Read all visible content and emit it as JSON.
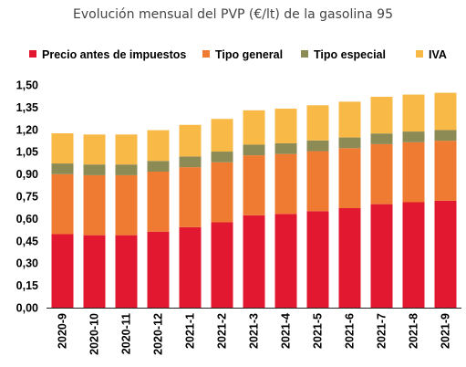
{
  "chart_data": {
    "type": "bar",
    "stacked": true,
    "title": "Evolución mensual del PVP (€/lt) de la gasolina 95",
    "categories": [
      "2020-9",
      "2020-10",
      "2020-11",
      "2020-12",
      "2021-1",
      "2021-2",
      "2021-3",
      "2021-4",
      "2021-5",
      "2021-6",
      "2021-7",
      "2021-8",
      "2021-9"
    ],
    "series": [
      {
        "name": "Precio antes de impuestos",
        "color": "#e1182f",
        "values": [
          0.495,
          0.488,
          0.488,
          0.512,
          0.542,
          0.575,
          0.622,
          0.631,
          0.65,
          0.67,
          0.697,
          0.71,
          0.72
        ]
      },
      {
        "name": "Tipo general",
        "color": "#ef7b32",
        "values": [
          0.404,
          0.404,
          0.404,
          0.404,
          0.404,
          0.404,
          0.404,
          0.404,
          0.404,
          0.404,
          0.404,
          0.404,
          0.404
        ]
      },
      {
        "name": "Tipo especial",
        "color": "#8c8a55",
        "values": [
          0.072,
          0.072,
          0.072,
          0.072,
          0.072,
          0.072,
          0.072,
          0.072,
          0.072,
          0.072,
          0.072,
          0.072,
          0.072
        ]
      },
      {
        "name": "IVA",
        "color": "#f9b946",
        "values": [
          0.203,
          0.202,
          0.202,
          0.207,
          0.213,
          0.22,
          0.231,
          0.233,
          0.237,
          0.241,
          0.247,
          0.249,
          0.251
        ]
      }
    ],
    "y_ticks": [
      "0,00",
      "0,15",
      "0,30",
      "0,45",
      "0,60",
      "0,75",
      "0,90",
      "1,05",
      "1,20",
      "1,35",
      "1,50"
    ],
    "ylim": [
      0,
      1.5
    ],
    "legend_position": "top",
    "grid": false
  }
}
